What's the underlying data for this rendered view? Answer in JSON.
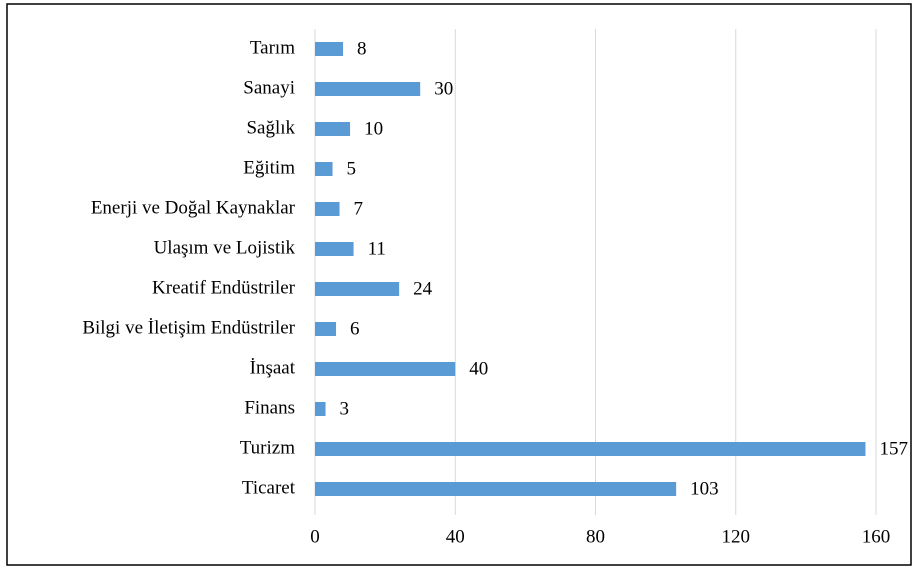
{
  "chart_data": {
    "type": "bar",
    "categories": [
      "Tarım",
      "Sanayi",
      "Sağlık",
      "Eğitim",
      "Enerji ve Doğal Kaynaklar",
      "Ulaşım ve Lojistik",
      "Kreatif Endüstriler",
      "Bilgi ve İletişim Endüstriler",
      "İnşaat",
      "Finans",
      "Turizm",
      "Ticaret"
    ],
    "values": [
      8,
      30,
      10,
      5,
      7,
      11,
      24,
      6,
      40,
      3,
      157,
      103
    ],
    "color": "#5b9bd5",
    "xlim": [
      0,
      160
    ],
    "xticks": [
      0,
      40,
      80,
      120,
      160
    ],
    "grid": true
  }
}
